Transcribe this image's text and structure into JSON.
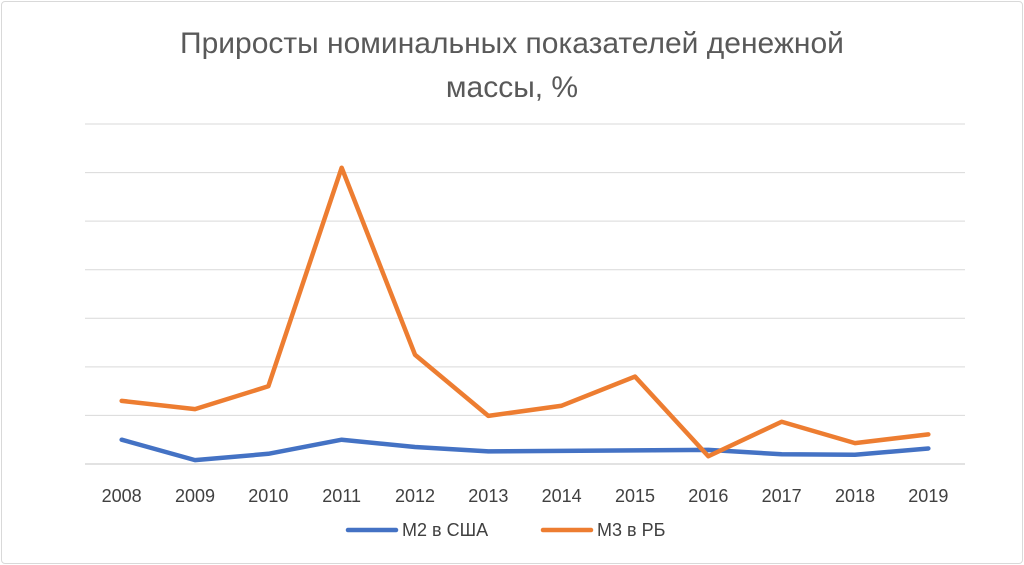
{
  "chart_data": {
    "type": "line",
    "title_line1": "Приросты номинальных показателей денежной",
    "title_line2": "массы, %",
    "categories": [
      "2008",
      "2009",
      "2010",
      "2011",
      "2012",
      "2013",
      "2014",
      "2015",
      "2016",
      "2017",
      "2018",
      "2019"
    ],
    "series": [
      {
        "name": "M2 в США",
        "color": "#4472C4",
        "values": [
          5.0,
          0.8,
          2.1,
          5.0,
          3.5,
          2.6,
          2.7,
          2.8,
          2.9,
          2.0,
          1.9,
          3.2
        ]
      },
      {
        "name": "M3 в РБ",
        "color": "#ED7D31",
        "values": [
          13.0,
          11.3,
          16.0,
          61.0,
          22.5,
          9.9,
          12.0,
          18.0,
          1.6,
          8.7,
          4.3,
          6.1
        ]
      }
    ],
    "ylim": [
      0,
      70
    ],
    "grid": true,
    "legend_position": "bottom"
  }
}
